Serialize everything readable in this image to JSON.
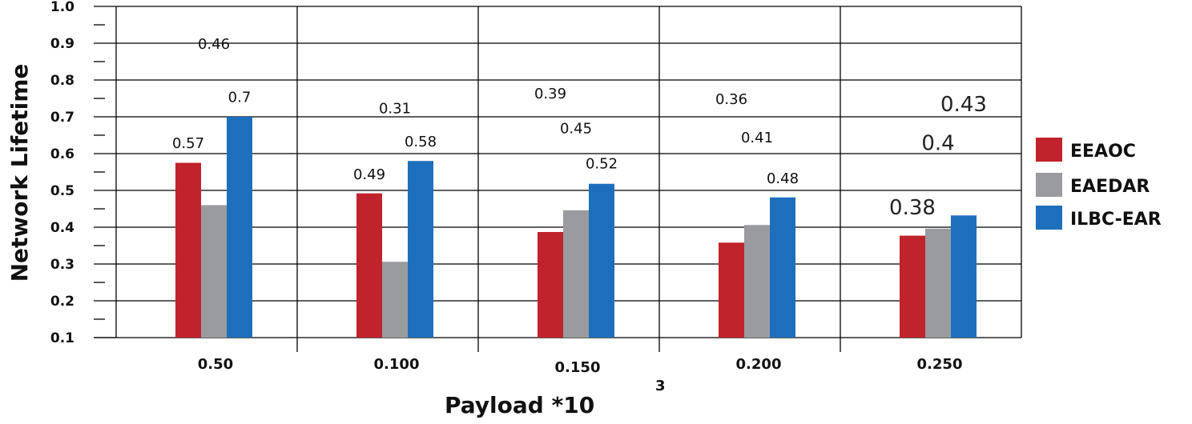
{
  "chart_data": {
    "type": "bar",
    "xlabel": "Payload *10",
    "xlabel_superscript": "3",
    "ylabel": "Network Lifetime",
    "ylim": [
      0.1,
      1.0
    ],
    "yticks": [
      "0.1",
      "0.2",
      "0.3",
      "0.4",
      "0.5",
      "0.6",
      "0.7",
      "0.8",
      "0.9",
      "1.0"
    ],
    "categories": [
      "0.50",
      "0.100",
      "0.150",
      "0.200",
      "0.250"
    ],
    "grid": true,
    "legend_position": "right",
    "series": [
      {
        "name": "EEAOC",
        "color": "#c0232b",
        "values": [
          0.575,
          0.492,
          0.387,
          0.358,
          0.377
        ]
      },
      {
        "name": "EAEDAR",
        "color": "#9a9b9f",
        "values": [
          0.46,
          0.306,
          0.446,
          0.406,
          0.396
        ]
      },
      {
        "name": "ILBC-EAR",
        "color": "#1e6fbb",
        "values": [
          0.7,
          0.58,
          0.518,
          0.481,
          0.432
        ]
      }
    ],
    "data_labels": [
      {
        "text": "0.57",
        "category": 0,
        "series": 0,
        "y": 0.615,
        "size": "normal"
      },
      {
        "text": "0.46",
        "category": 0,
        "series": 1,
        "y": 0.885,
        "size": "normal"
      },
      {
        "text": "0.7",
        "category": 0,
        "series": 2,
        "y": 0.74,
        "size": "normal"
      },
      {
        "text": "0.49",
        "category": 1,
        "series": 0,
        "y": 0.53,
        "size": "normal"
      },
      {
        "text": "0.31",
        "category": 1,
        "series": 1,
        "y": 0.71,
        "size": "normal"
      },
      {
        "text": "0.58",
        "category": 1,
        "series": 2,
        "y": 0.62,
        "size": "normal"
      },
      {
        "text": "0.39",
        "category": 2,
        "series": 0,
        "y": 0.75,
        "size": "normal"
      },
      {
        "text": "0.45",
        "category": 2,
        "series": 1,
        "y": 0.655,
        "size": "normal"
      },
      {
        "text": "0.52",
        "category": 2,
        "series": 2,
        "y": 0.56,
        "size": "normal"
      },
      {
        "text": "0.36",
        "category": 3,
        "series": 0,
        "y": 0.735,
        "size": "normal"
      },
      {
        "text": "0.41",
        "category": 3,
        "series": 1,
        "y": 0.63,
        "size": "normal"
      },
      {
        "text": "0.48",
        "category": 3,
        "series": 2,
        "y": 0.52,
        "size": "normal"
      },
      {
        "text": "0.38",
        "category": 4,
        "series": 0,
        "y": 0.435,
        "size": "big"
      },
      {
        "text": "0.4",
        "category": 4,
        "series": 1,
        "y": 0.61,
        "size": "big"
      },
      {
        "text": "0.43",
        "category": 4,
        "series": 2,
        "y": 0.715,
        "size": "big"
      }
    ]
  }
}
